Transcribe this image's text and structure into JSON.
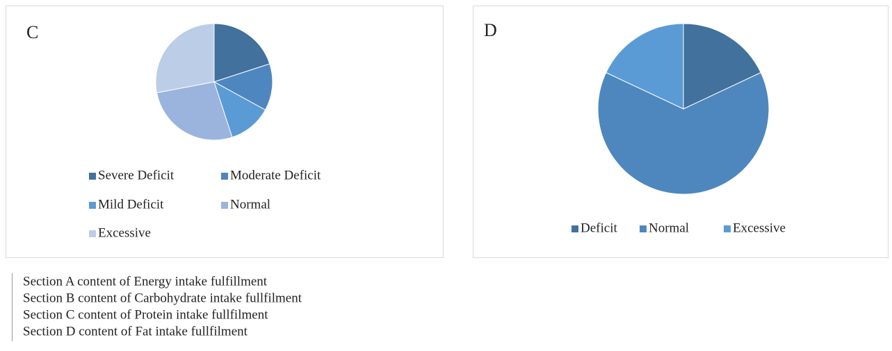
{
  "chart_data": [
    {
      "type": "pie",
      "title": "C",
      "categories": [
        "Severe Deficit",
        "Moderate Deficit",
        "Mild Deficit",
        "Normal",
        "Excessive"
      ],
      "values": [
        20,
        13,
        12,
        27,
        28
      ],
      "colors": [
        "#41719c",
        "#4e87bf",
        "#5b9bd5",
        "#9ab4de",
        "#bccde8"
      ],
      "legend": "bottom"
    },
    {
      "type": "pie",
      "title": "D",
      "categories": [
        "Deficit",
        "Normal",
        "Excessive"
      ],
      "values": [
        18,
        64,
        18
      ],
      "colors": [
        "#41719c",
        "#4e87be",
        "#5b9bd5"
      ],
      "legend": "bottom"
    }
  ],
  "captions": [
    "Section A content of Energy intake fulfillment",
    "Section B content of Carbohydrate intake fullfilment",
    "Section C content of Protein intake fullfilment",
    "Section D content of Fat intake fullfilment"
  ]
}
